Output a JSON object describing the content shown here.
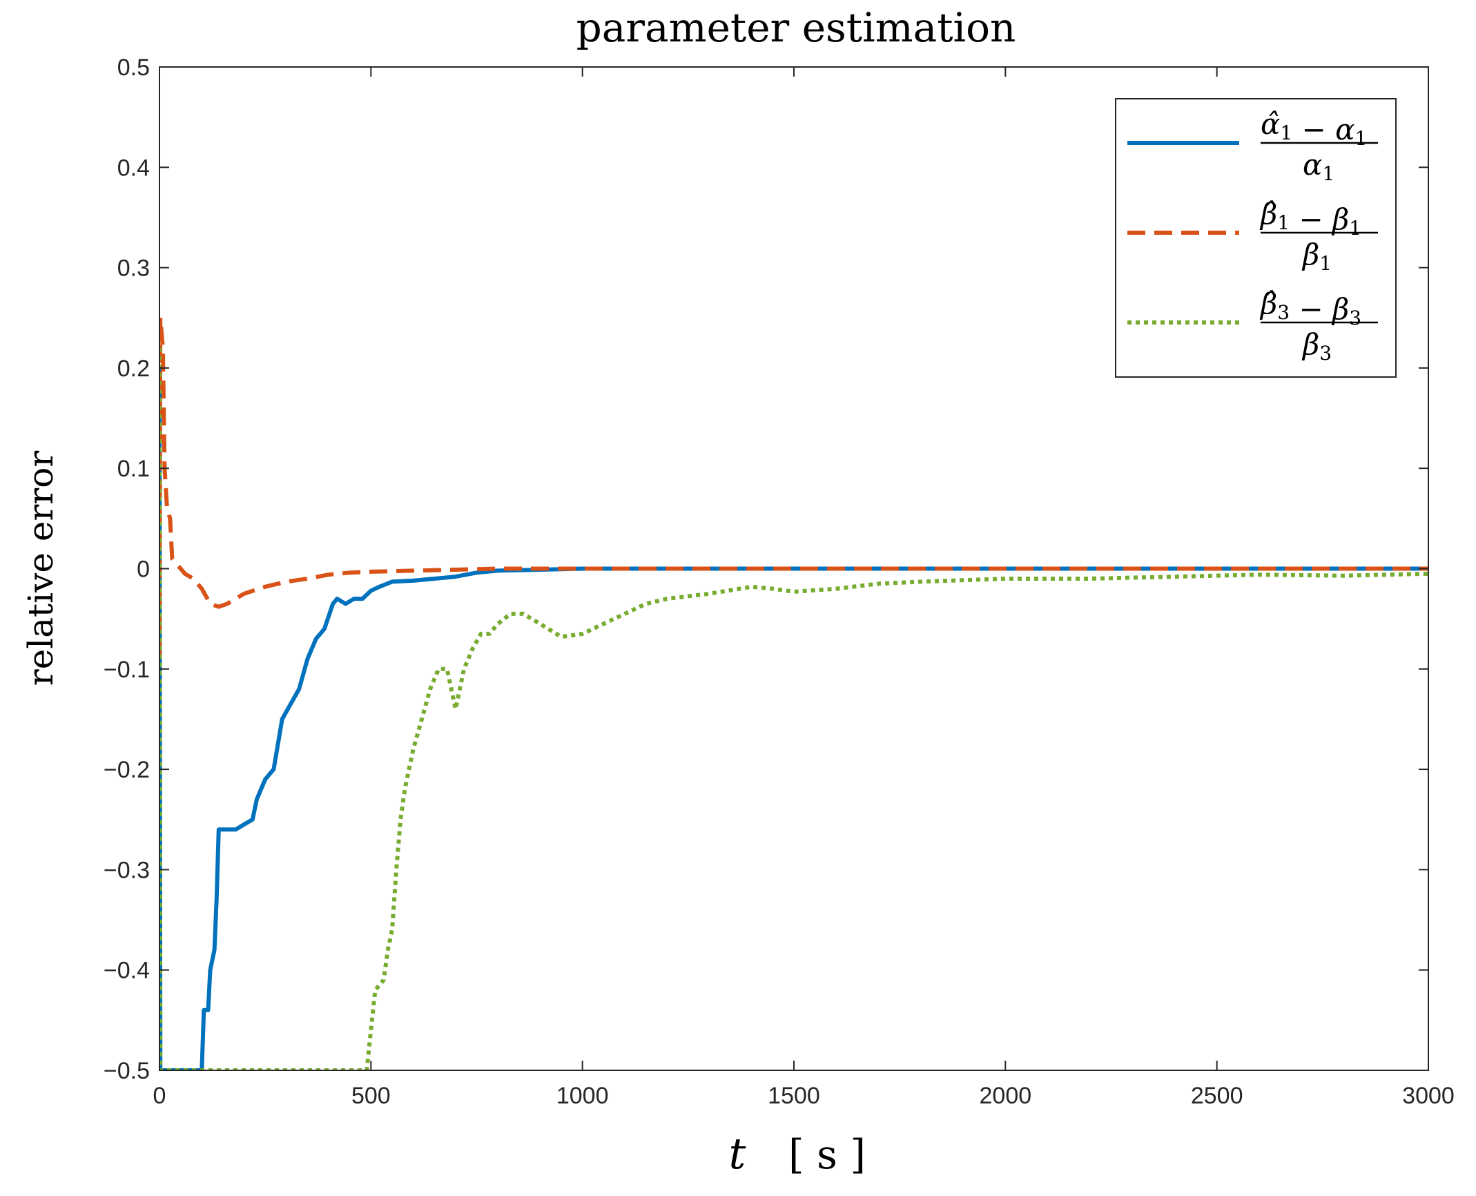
{
  "chart_data": {
    "type": "line",
    "title": "parameter estimation",
    "xlabel_var": "t",
    "xlabel_unit": "[ s ]",
    "ylabel": "relative error",
    "xlim": [
      0,
      3000
    ],
    "ylim": [
      -0.5,
      0.5
    ],
    "xticks": [
      0,
      500,
      1000,
      1500,
      2000,
      2500,
      3000
    ],
    "yticks": [
      0.5,
      0.4,
      0.3,
      0.2,
      0.1,
      0,
      -0.1,
      -0.2,
      -0.3,
      -0.4,
      -0.5
    ],
    "ytick_labels": [
      "0.5",
      "0.4",
      "0.3",
      "0.2",
      "0.1",
      "0",
      "−0.1",
      "−0.2",
      "−0.3",
      "−0.4",
      "−0.5"
    ],
    "grid": false,
    "legend_position": "top-right",
    "series": [
      {
        "name": "(α̂1 − α1) / α1",
        "color": "#0072BD",
        "style": "solid",
        "legend": {
          "num_a": "α̂",
          "num_a_sub": "1",
          "num_b": "α",
          "num_b_sub": "1",
          "den": "α",
          "den_sub": "1"
        },
        "points": [
          [
            0,
            -0.5
          ],
          [
            0,
            0.2
          ],
          [
            2,
            -0.5
          ],
          [
            100,
            -0.5
          ],
          [
            105,
            -0.44
          ],
          [
            115,
            -0.44
          ],
          [
            120,
            -0.4
          ],
          [
            130,
            -0.38
          ],
          [
            135,
            -0.33
          ],
          [
            140,
            -0.26
          ],
          [
            150,
            -0.26
          ],
          [
            160,
            -0.26
          ],
          [
            180,
            -0.26
          ],
          [
            200,
            -0.255
          ],
          [
            220,
            -0.25
          ],
          [
            230,
            -0.23
          ],
          [
            250,
            -0.21
          ],
          [
            270,
            -0.2
          ],
          [
            290,
            -0.15
          ],
          [
            310,
            -0.135
          ],
          [
            330,
            -0.12
          ],
          [
            350,
            -0.09
          ],
          [
            370,
            -0.07
          ],
          [
            390,
            -0.06
          ],
          [
            410,
            -0.035
          ],
          [
            420,
            -0.03
          ],
          [
            440,
            -0.035
          ],
          [
            460,
            -0.03
          ],
          [
            480,
            -0.03
          ],
          [
            500,
            -0.022
          ],
          [
            520,
            -0.018
          ],
          [
            550,
            -0.013
          ],
          [
            600,
            -0.012
          ],
          [
            650,
            -0.01
          ],
          [
            700,
            -0.008
          ],
          [
            750,
            -0.004
          ],
          [
            800,
            -0.002
          ],
          [
            900,
            -0.001
          ],
          [
            1000,
            0.0
          ],
          [
            1500,
            0.0
          ],
          [
            2000,
            0.0
          ],
          [
            2500,
            0.0
          ],
          [
            3000,
            0.0
          ]
        ]
      },
      {
        "name": "(β̂1 − β1) / β1",
        "color": "#D95319",
        "style": "dashed",
        "legend": {
          "num_a": "β̂",
          "num_a_sub": "1",
          "num_b": "β",
          "num_b_sub": "1",
          "den": "β",
          "den_sub": "1"
        },
        "points": [
          [
            0,
            -0.09
          ],
          [
            2,
            0.25
          ],
          [
            8,
            0.22
          ],
          [
            12,
            0.1
          ],
          [
            18,
            0.06
          ],
          [
            25,
            0.05
          ],
          [
            30,
            0.01
          ],
          [
            40,
            0.005
          ],
          [
            60,
            -0.005
          ],
          [
            80,
            -0.01
          ],
          [
            100,
            -0.02
          ],
          [
            120,
            -0.035
          ],
          [
            140,
            -0.038
          ],
          [
            160,
            -0.035
          ],
          [
            200,
            -0.025
          ],
          [
            250,
            -0.018
          ],
          [
            300,
            -0.013
          ],
          [
            350,
            -0.01
          ],
          [
            400,
            -0.006
          ],
          [
            450,
            -0.004
          ],
          [
            500,
            -0.003
          ],
          [
            600,
            -0.002
          ],
          [
            700,
            -0.001
          ],
          [
            800,
            0.0
          ],
          [
            1000,
            0.0
          ],
          [
            1500,
            0.0
          ],
          [
            2000,
            0.0
          ],
          [
            2500,
            0.0
          ],
          [
            3000,
            0.0
          ]
        ]
      },
      {
        "name": "(β̂3 − β3) / β3",
        "color": "#77AC30",
        "style": "dotted",
        "legend": {
          "num_a": "β̂",
          "num_a_sub": "3",
          "num_b": "β",
          "num_b_sub": "3",
          "den": "β",
          "den_sub": "3"
        },
        "points": [
          [
            0,
            0.22
          ],
          [
            2,
            -0.5
          ],
          [
            490,
            -0.5
          ],
          [
            500,
            -0.46
          ],
          [
            510,
            -0.42
          ],
          [
            530,
            -0.41
          ],
          [
            540,
            -0.38
          ],
          [
            550,
            -0.36
          ],
          [
            560,
            -0.3
          ],
          [
            570,
            -0.25
          ],
          [
            580,
            -0.22
          ],
          [
            600,
            -0.18
          ],
          [
            620,
            -0.15
          ],
          [
            640,
            -0.12
          ],
          [
            660,
            -0.1
          ],
          [
            680,
            -0.1
          ],
          [
            700,
            -0.14
          ],
          [
            710,
            -0.12
          ],
          [
            720,
            -0.1
          ],
          [
            740,
            -0.08
          ],
          [
            760,
            -0.065
          ],
          [
            780,
            -0.065
          ],
          [
            800,
            -0.055
          ],
          [
            830,
            -0.045
          ],
          [
            860,
            -0.045
          ],
          [
            900,
            -0.055
          ],
          [
            950,
            -0.068
          ],
          [
            1000,
            -0.065
          ],
          [
            1050,
            -0.055
          ],
          [
            1100,
            -0.045
          ],
          [
            1150,
            -0.035
          ],
          [
            1200,
            -0.03
          ],
          [
            1300,
            -0.025
          ],
          [
            1400,
            -0.018
          ],
          [
            1450,
            -0.02
          ],
          [
            1500,
            -0.023
          ],
          [
            1600,
            -0.02
          ],
          [
            1700,
            -0.015
          ],
          [
            1800,
            -0.013
          ],
          [
            2000,
            -0.01
          ],
          [
            2200,
            -0.01
          ],
          [
            2400,
            -0.008
          ],
          [
            2600,
            -0.006
          ],
          [
            2800,
            -0.007
          ],
          [
            3000,
            -0.005
          ]
        ]
      }
    ]
  }
}
